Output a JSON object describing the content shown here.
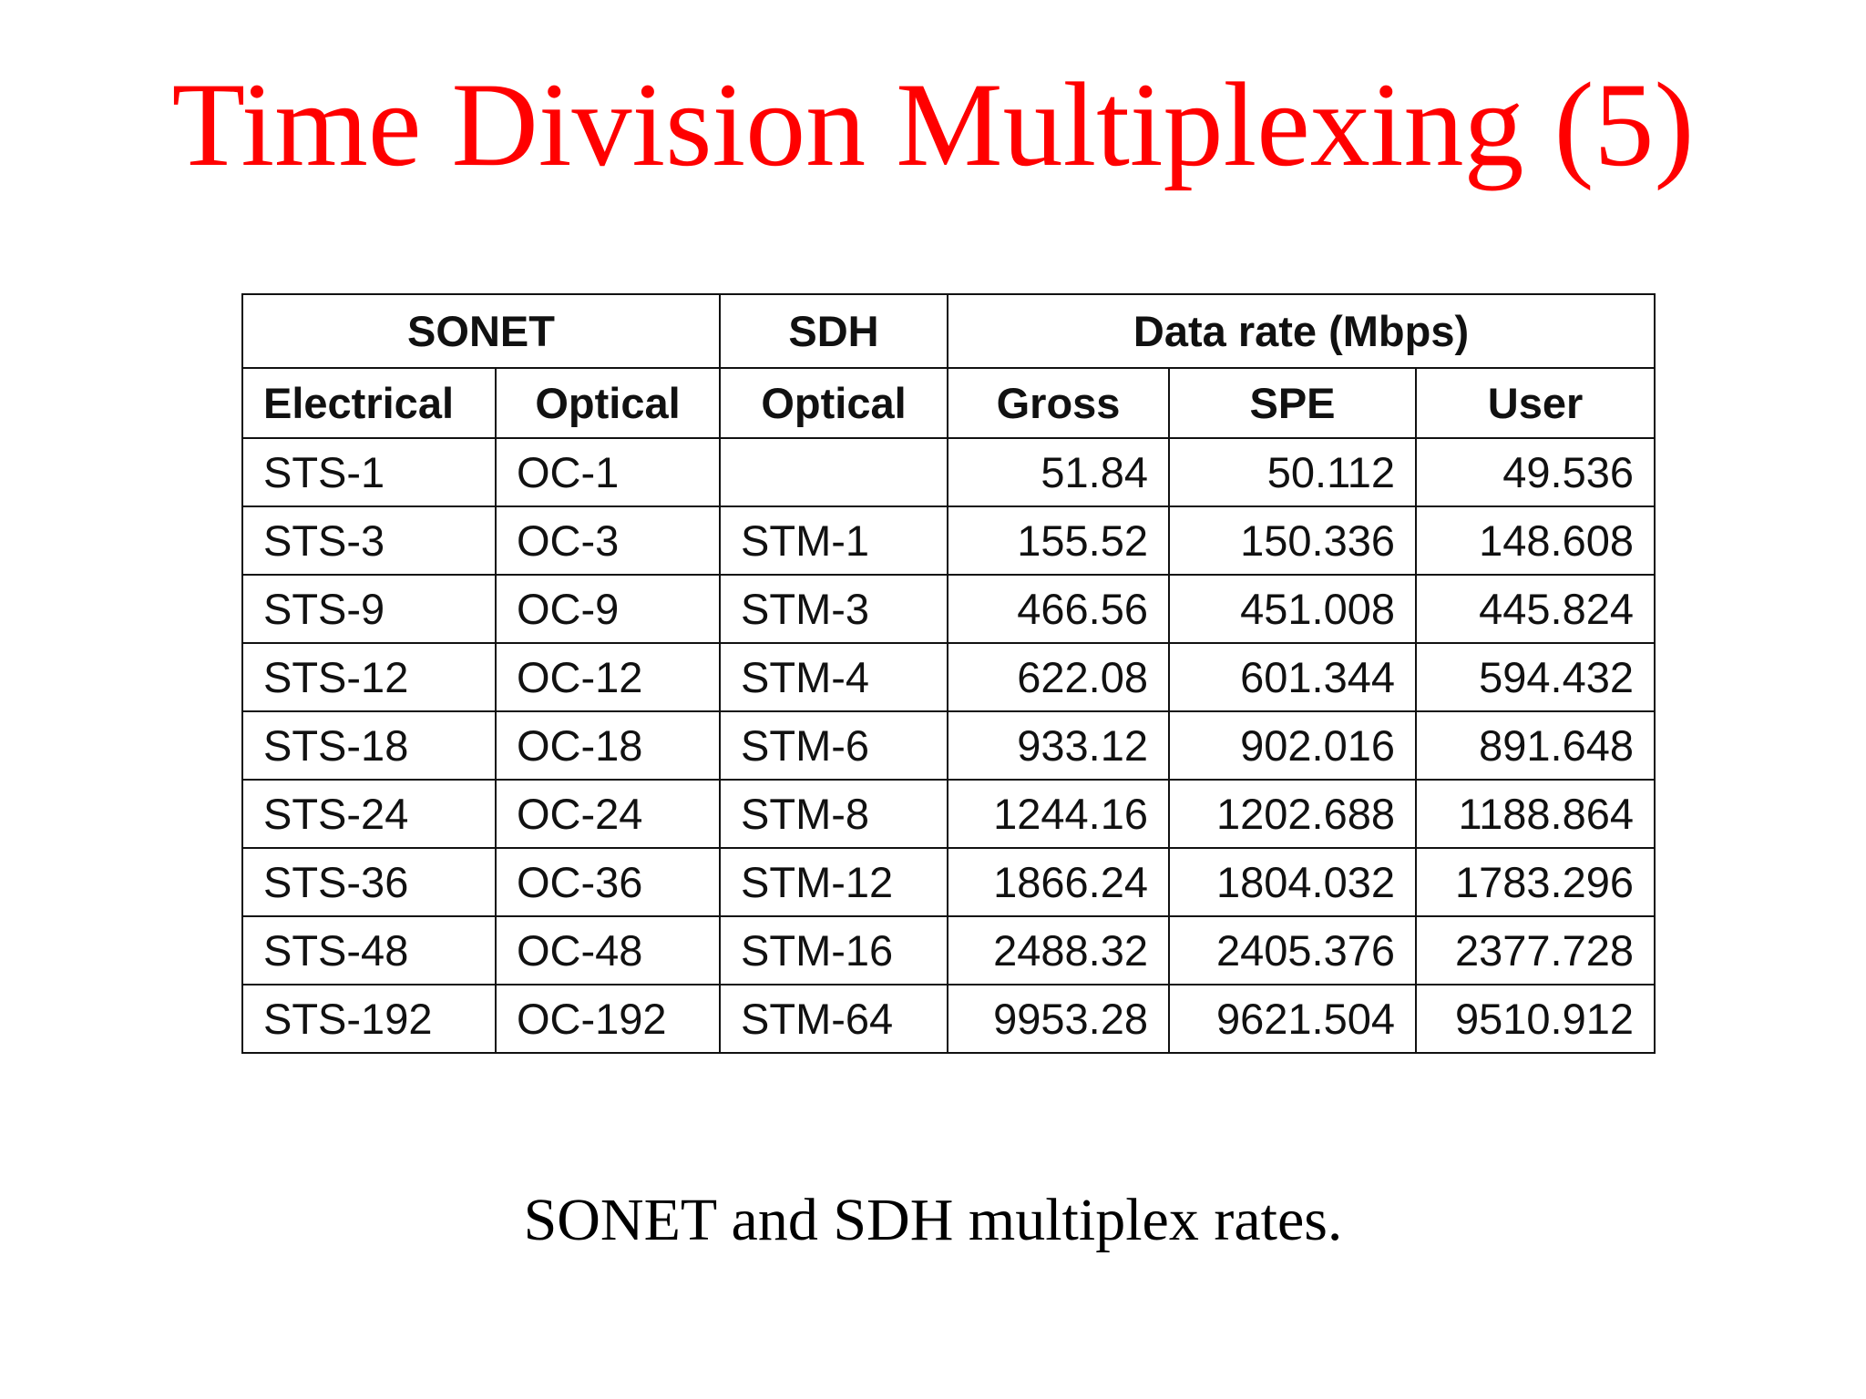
{
  "title": "Time Division Multiplexing (5)",
  "table": {
    "group_headers": {
      "sonet": "SONET",
      "sdh": "SDH",
      "data_rate": "Data rate (Mbps)"
    },
    "sub_headers": {
      "electrical": "Electrical",
      "optical_sonet": "Optical",
      "optical_sdh": "Optical",
      "gross": "Gross",
      "spe": "SPE",
      "user": "User"
    },
    "rows": [
      [
        "STS-1",
        "OC-1",
        "",
        "51.84",
        "50.112",
        "49.536"
      ],
      [
        "STS-3",
        "OC-3",
        "STM-1",
        "155.52",
        "150.336",
        "148.608"
      ],
      [
        "STS-9",
        "OC-9",
        "STM-3",
        "466.56",
        "451.008",
        "445.824"
      ],
      [
        "STS-12",
        "OC-12",
        "STM-4",
        "622.08",
        "601.344",
        "594.432"
      ],
      [
        "STS-18",
        "OC-18",
        "STM-6",
        "933.12",
        "902.016",
        "891.648"
      ],
      [
        "STS-24",
        "OC-24",
        "STM-8",
        "1244.16",
        "1202.688",
        "1188.864"
      ],
      [
        "STS-36",
        "OC-36",
        "STM-12",
        "1866.24",
        "1804.032",
        "1783.296"
      ],
      [
        "STS-48",
        "OC-48",
        "STM-16",
        "2488.32",
        "2405.376",
        "2377.728"
      ],
      [
        "STS-192",
        "OC-192",
        "STM-64",
        "9953.28",
        "9621.504",
        "9510.912"
      ]
    ]
  },
  "caption": "SONET and SDH multiplex rates.",
  "colors": {
    "title": "#ff0000",
    "text": "#111111",
    "background": "#ffffff"
  }
}
